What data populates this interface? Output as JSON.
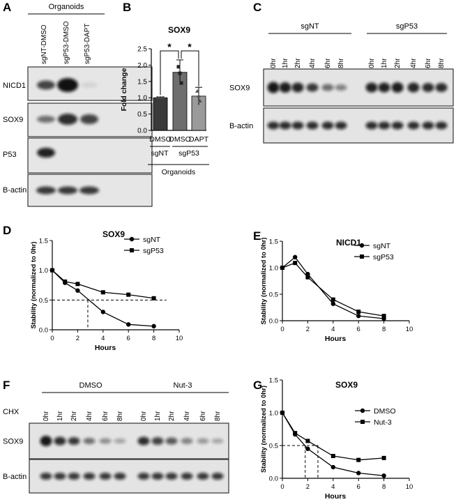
{
  "panels": {
    "A": {
      "letter": "A",
      "group_label": "Organoids",
      "lanes": [
        "sgNT-DMSO",
        "sgP53-DMSO",
        "sgP53-DAPT"
      ],
      "rows": [
        "NICD1",
        "SOX9",
        "P53",
        "B-actin"
      ]
    },
    "B": {
      "letter": "B",
      "title": "SOX9",
      "ylabel": "Fold change",
      "yticks": [
        "0.0",
        "0.5",
        "1.0",
        "1.5",
        "2.0",
        "2.5"
      ],
      "treatments": [
        "DMSO",
        "DMSO",
        "DAPT"
      ],
      "genotypes": [
        "sgNT",
        "sgP53"
      ],
      "group_label": "Organoids",
      "significance": [
        "*",
        "*"
      ]
    },
    "C": {
      "letter": "C",
      "groups": [
        "sgNT",
        "sgP53"
      ],
      "timepoints": [
        "0hr",
        "1hr",
        "2hr",
        "4hr",
        "6hr",
        "8hr"
      ],
      "rows": [
        "SOX9",
        "B-actin"
      ]
    },
    "D": {
      "letter": "D"
    },
    "E": {
      "letter": "E"
    },
    "F": {
      "letter": "F",
      "treatment_label": "CHX",
      "groups": [
        "DMSO",
        "Nut-3"
      ],
      "timepoints": [
        "0hr",
        "1hr",
        "2hr",
        "4hr",
        "6hr",
        "8hr"
      ],
      "rows": [
        "SOX9",
        "B-actin"
      ]
    },
    "G": {
      "letter": "G"
    }
  },
  "chart_data": [
    {
      "panel": "B",
      "type": "bar",
      "title": "SOX9",
      "ylabel": "Fold change",
      "categories": [
        "DMSO",
        "DMSO",
        "DAPT"
      ],
      "values": [
        1.0,
        1.78,
        1.05
      ],
      "errors": [
        0.0,
        0.38,
        0.27
      ],
      "points": [
        [
          1.0,
          1.0,
          1.0
        ],
        [
          1.95,
          1.75,
          1.45
        ],
        [
          1.2,
          1.05,
          0.9
        ]
      ],
      "bar_colors": [
        "#3a3a3a",
        "#6e6e6e",
        "#9a9a9a"
      ],
      "ylim": [
        0,
        2.5
      ]
    },
    {
      "panel": "D",
      "type": "line",
      "title": "SOX9",
      "xlabel": "Hours",
      "ylabel": "Stability (normalized to 0hr)",
      "xlim": [
        0,
        10
      ],
      "ylim": [
        0,
        1.5
      ],
      "xticks": [
        "0",
        "2",
        "4",
        "6",
        "8",
        "10"
      ],
      "yticks": [
        "0.0",
        "0.5",
        "1.0",
        "1.5"
      ],
      "series": [
        {
          "name": "sgNT",
          "marker": "circle",
          "x": [
            0,
            1,
            2,
            4,
            6,
            8
          ],
          "values": [
            1.0,
            0.79,
            0.66,
            0.3,
            0.09,
            0.06
          ]
        },
        {
          "name": "sgP53",
          "marker": "square",
          "x": [
            0,
            1,
            2,
            4,
            6,
            8
          ],
          "values": [
            1.0,
            0.81,
            0.77,
            0.63,
            0.59,
            0.53
          ]
        }
      ],
      "halflife_y": 0.5,
      "halflife_x": 2.8
    },
    {
      "panel": "E",
      "type": "line",
      "title": "NICD1",
      "xlabel": "Hours",
      "ylabel": "Stability (normalized to 0hr)",
      "xlim": [
        0,
        10
      ],
      "ylim": [
        0,
        1.5
      ],
      "xticks": [
        "0",
        "2",
        "4",
        "6",
        "8",
        "10"
      ],
      "yticks": [
        "0.0",
        "0.5",
        "1.0",
        "1.5"
      ],
      "series": [
        {
          "name": "sgNT",
          "marker": "circle",
          "x": [
            0,
            1,
            2,
            4,
            6,
            8
          ],
          "values": [
            1.0,
            1.2,
            0.88,
            0.32,
            0.09,
            0.04
          ]
        },
        {
          "name": "sgP53",
          "marker": "square",
          "x": [
            0,
            1,
            2,
            4,
            6,
            8
          ],
          "values": [
            1.0,
            1.09,
            0.82,
            0.4,
            0.17,
            0.09
          ]
        }
      ]
    },
    {
      "panel": "G",
      "type": "line",
      "title": "SOX9",
      "xlabel": "Hours",
      "ylabel": "Stability (normalized to 0hr)",
      "xlim": [
        0,
        10
      ],
      "ylim": [
        0,
        1.5
      ],
      "xticks": [
        "0",
        "2",
        "4",
        "6",
        "8",
        "10"
      ],
      "yticks": [
        "0.0",
        "0.5",
        "1.0",
        "1.5"
      ],
      "series": [
        {
          "name": "DMSO",
          "marker": "circle",
          "x": [
            0,
            1,
            2,
            4,
            6,
            8
          ],
          "values": [
            1.0,
            0.67,
            0.45,
            0.17,
            0.08,
            0.04
          ]
        },
        {
          "name": "Nut-3",
          "marker": "square",
          "x": [
            0,
            1,
            2,
            4,
            6,
            8
          ],
          "values": [
            1.0,
            0.69,
            0.57,
            0.34,
            0.28,
            0.31
          ]
        }
      ],
      "halflife_y": 0.5,
      "halflife_x": [
        1.8,
        2.8
      ]
    }
  ]
}
